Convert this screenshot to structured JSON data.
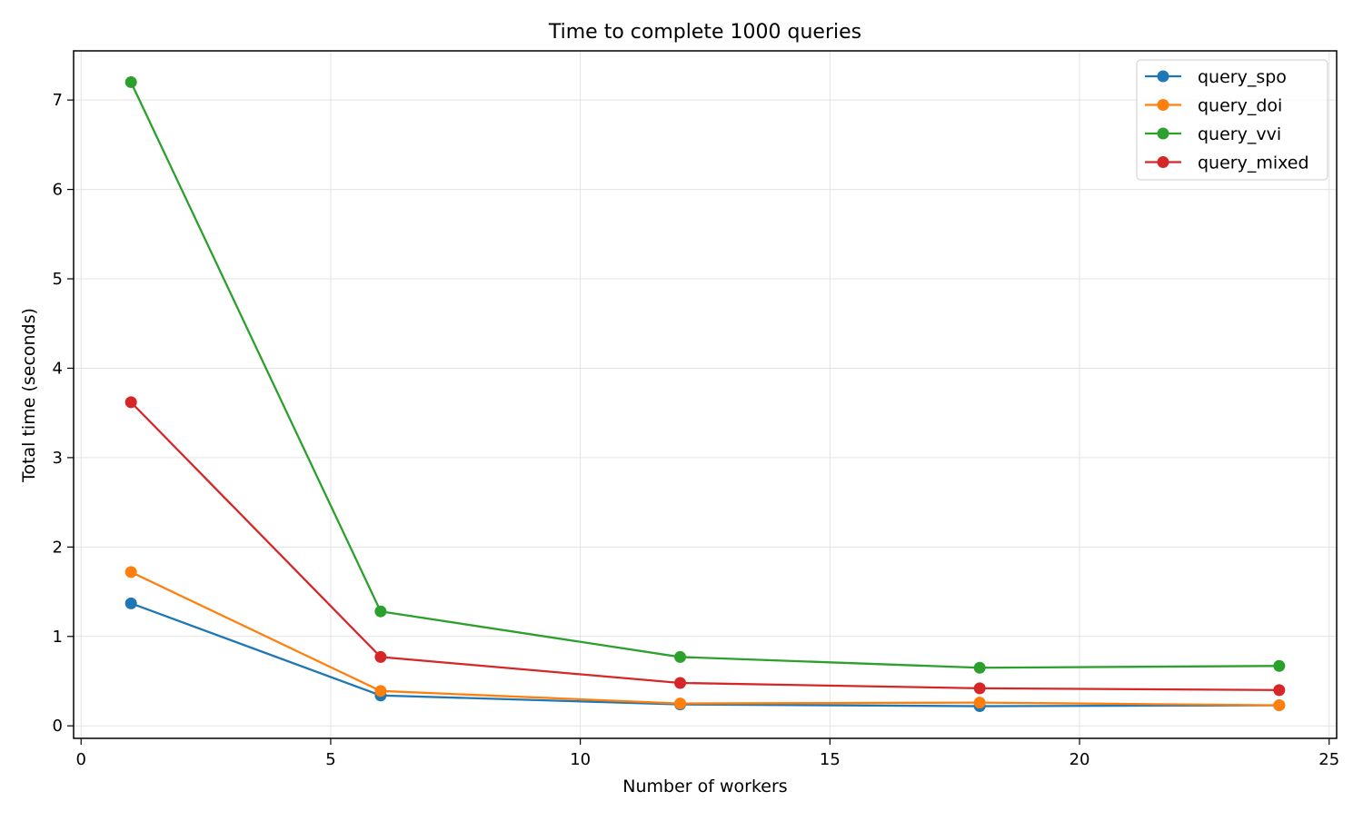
{
  "chart_data": {
    "type": "line",
    "title": "Time to complete 1000 queries",
    "xlabel": "Number of workers",
    "ylabel": "Total time (seconds)",
    "xlim": [
      -0.15,
      25.15
    ],
    "ylim": [
      -0.14,
      7.55
    ],
    "xticks": [
      0,
      5,
      10,
      15,
      20,
      25
    ],
    "yticks": [
      0,
      1,
      2,
      3,
      4,
      5,
      6,
      7
    ],
    "grid": true,
    "legend": "top-right",
    "x": [
      1,
      6,
      12,
      18,
      24
    ],
    "series": [
      {
        "name": "query_spo",
        "color": "#1f77b4",
        "values": [
          1.37,
          0.34,
          0.24,
          0.22,
          0.23
        ]
      },
      {
        "name": "query_doi",
        "color": "#ff7f0e",
        "values": [
          1.72,
          0.39,
          0.25,
          0.26,
          0.23
        ]
      },
      {
        "name": "query_vvi",
        "color": "#2ca02c",
        "values": [
          7.2,
          1.28,
          0.77,
          0.65,
          0.67
        ]
      },
      {
        "name": "query_mixed",
        "color": "#d62728",
        "values": [
          3.62,
          0.77,
          0.48,
          0.42,
          0.4
        ]
      }
    ]
  }
}
